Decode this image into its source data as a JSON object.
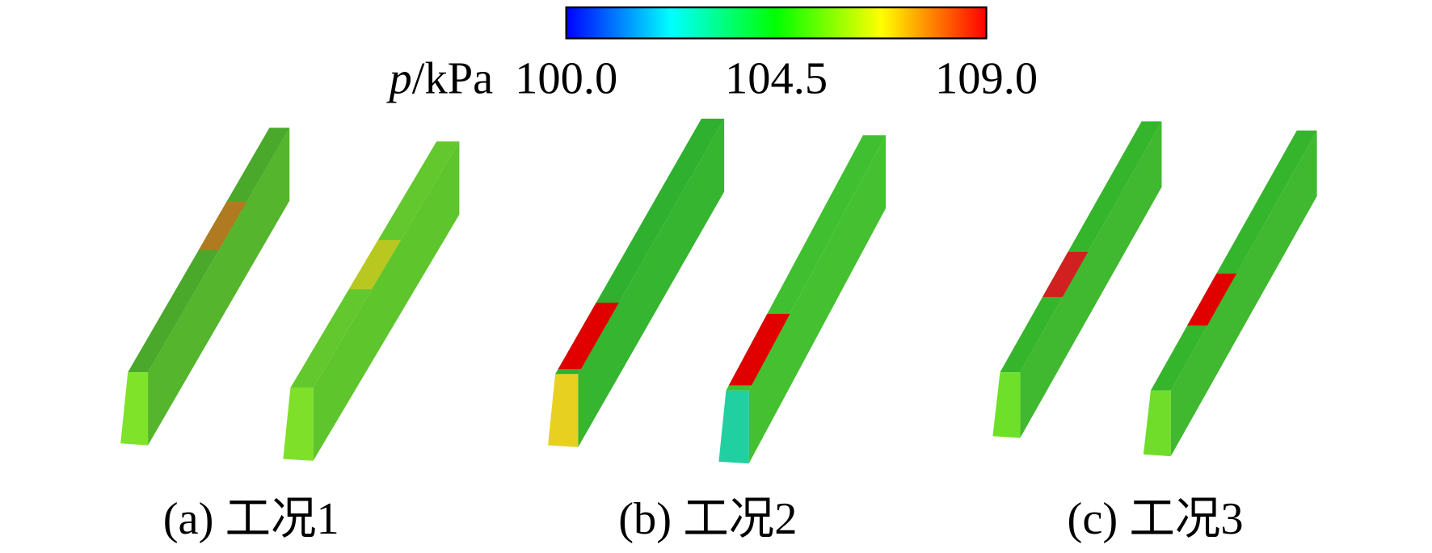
{
  "colorbar": {
    "variable": "p",
    "unit": "/kPa",
    "ticks": [
      "100.0",
      "104.5",
      "109.0"
    ]
  },
  "panels": [
    {
      "caption": "(a) 工况1"
    },
    {
      "caption": "(b) 工况2"
    },
    {
      "caption": "(c) 工况3"
    }
  ]
}
